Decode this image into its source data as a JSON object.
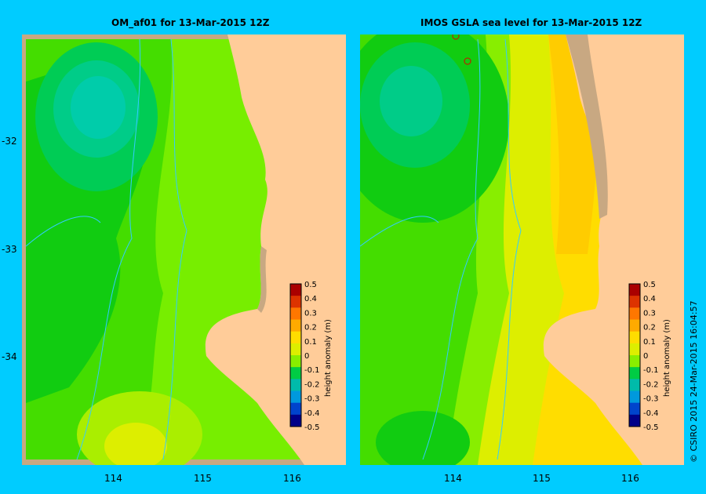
{
  "panels": [
    {
      "title": "OM_af01  for 13-Mar-2015 12Z"
    },
    {
      "title": "IMOS GSLA sea level  for 13-Mar-2015 12Z"
    }
  ],
  "lat_ticks": [
    "-32",
    "-33",
    "-34"
  ],
  "lon_ticks": [
    "114",
    "115",
    "116"
  ],
  "colorbar": {
    "label": "height anomaly (m)",
    "ticks": [
      "0.5",
      "0.4",
      "0.3",
      "0.2",
      "0.1",
      "0",
      "-0.1",
      "-0.2",
      "-0.3",
      "-0.4",
      "-0.5"
    ],
    "colors": [
      "#aa0000",
      "#dd3300",
      "#ff7700",
      "#ffaa00",
      "#ffdd00",
      "#ddee00",
      "#88ee00",
      "#00cc44",
      "#00bbaa",
      "#0099dd",
      "#0044cc",
      "#000088"
    ]
  },
  "colors": {
    "land": "#ffcc99",
    "shelf_land": "#c8a882",
    "frame_grey": "#c8a882",
    "contour": "#33ccff"
  },
  "credit": "© CSIRO 2015   24-Mar-2015 16:04:57"
}
